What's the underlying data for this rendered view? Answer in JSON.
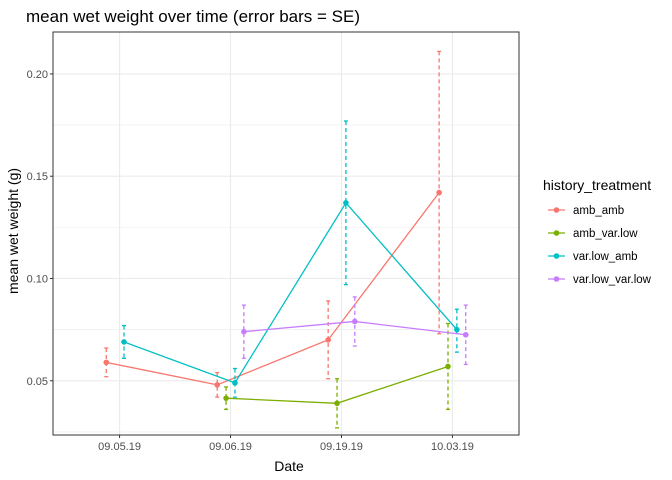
{
  "chart_data": {
    "type": "line",
    "title": "mean wet weight over time (error bars = SE)",
    "xlabel": "Date",
    "ylabel": "mean wet weight (g)",
    "categories": [
      "09.05.19",
      "09.06.19",
      "09.19.19",
      "10.03.19"
    ],
    "y_ticks": [
      0.05,
      0.1,
      0.15,
      0.2
    ],
    "y_tick_labels": [
      "0.05",
      "0.10",
      "0.15",
      "0.20"
    ],
    "ylim": [
      0.0235,
      0.2205
    ],
    "grid": true,
    "legend": {
      "title": "history_treatment",
      "position": "right"
    },
    "series": [
      {
        "name": "amb_amb",
        "color": "#F8766D",
        "dodge": -0.3,
        "values": [
          0.059,
          0.048,
          0.07,
          0.142
        ],
        "lower": [
          0.052,
          0.042,
          0.051,
          0.073
        ],
        "upper": [
          0.066,
          0.054,
          0.089,
          0.211
        ]
      },
      {
        "name": "amb_var.low",
        "color": "#7CAE00",
        "dodge": -0.1,
        "values": [
          null,
          0.0415,
          0.039,
          0.057
        ],
        "lower": [
          null,
          0.036,
          0.027,
          0.036
        ],
        "upper": [
          null,
          0.047,
          0.051,
          0.078
        ]
      },
      {
        "name": "var.low_amb",
        "color": "#00BFC4",
        "dodge": 0.1,
        "values": [
          0.069,
          0.049,
          0.137,
          0.075
        ],
        "lower": [
          0.061,
          0.042,
          0.097,
          0.064
        ],
        "upper": [
          0.077,
          0.056,
          0.177,
          0.085
        ]
      },
      {
        "name": "var.low_var.low",
        "color": "#C77CFF",
        "dodge": 0.3,
        "values": [
          null,
          0.074,
          0.079,
          0.0725
        ],
        "lower": [
          null,
          0.061,
          0.067,
          0.058
        ],
        "upper": [
          null,
          0.087,
          0.091,
          0.087
        ]
      }
    ]
  }
}
